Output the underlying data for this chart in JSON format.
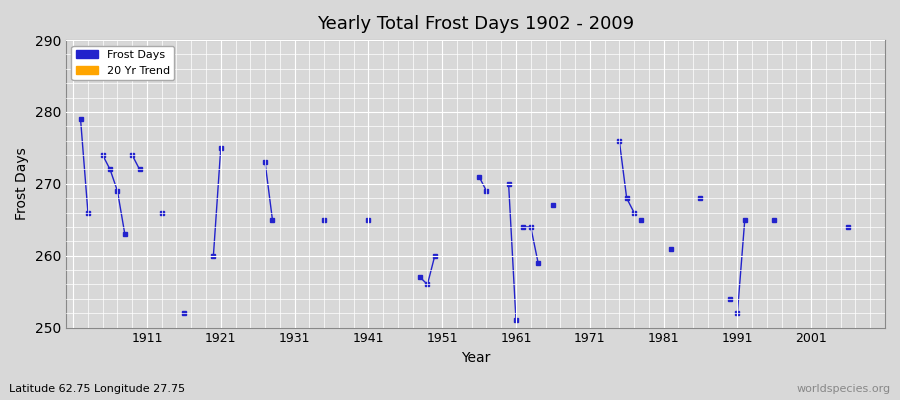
{
  "title": "Yearly Total Frost Days 1902 - 2009",
  "xlabel": "Year",
  "ylabel": "Frost Days",
  "xlim": [
    1900,
    2011
  ],
  "ylim": [
    250,
    290
  ],
  "yticks": [
    250,
    260,
    270,
    280,
    290
  ],
  "xticks": [
    1901,
    1911,
    1921,
    1931,
    1941,
    1951,
    1961,
    1971,
    1981,
    1991,
    2001
  ],
  "xticklabels": [
    "",
    "1911",
    "1921",
    "1931",
    "1941",
    "1951",
    "1961",
    "1971",
    "1981",
    "1991",
    "2001"
  ],
  "bg_color": "#d8d8d8",
  "plot_bg_color": "#d8d8d8",
  "line_color": "#2222cc",
  "trend_color": "#ffa500",
  "grid_color": "#ffffff",
  "subtitle": "Latitude 62.75 Longitude 27.75",
  "watermark": "worldspecies.org",
  "frost_data": [
    [
      1902,
      279
    ],
    [
      1903,
      266
    ],
    [
      null,
      null
    ],
    [
      1905,
      274
    ],
    [
      1906,
      272
    ],
    [
      1907,
      269
    ],
    [
      1908,
      263
    ],
    [
      null,
      null
    ],
    [
      1909,
      274
    ],
    [
      1910,
      272
    ],
    [
      null,
      null
    ],
    [
      1913,
      266
    ],
    [
      null,
      null
    ],
    [
      1916,
      252
    ],
    [
      null,
      null
    ],
    [
      1920,
      260
    ],
    [
      1921,
      275
    ],
    [
      null,
      null
    ],
    [
      1927,
      273
    ],
    [
      1928,
      265
    ],
    [
      null,
      null
    ],
    [
      1935,
      265
    ],
    [
      null,
      null
    ],
    [
      1941,
      265
    ],
    [
      null,
      null
    ],
    [
      1948,
      257
    ],
    [
      1949,
      256
    ],
    [
      1950,
      260
    ],
    [
      null,
      null
    ],
    [
      1956,
      271
    ],
    [
      1957,
      269
    ],
    [
      null,
      null
    ],
    [
      1960,
      270
    ],
    [
      1961,
      251
    ],
    [
      null,
      null
    ],
    [
      1962,
      264
    ],
    [
      1963,
      264
    ],
    [
      1964,
      259
    ],
    [
      null,
      null
    ],
    [
      1966,
      267
    ],
    [
      null,
      null
    ],
    [
      1975,
      276
    ],
    [
      1976,
      268
    ],
    [
      1977,
      266
    ],
    [
      null,
      null
    ],
    [
      1978,
      265
    ],
    [
      null,
      null
    ],
    [
      1982,
      261
    ],
    [
      null,
      null
    ],
    [
      1986,
      268
    ],
    [
      null,
      null
    ],
    [
      1990,
      254
    ],
    [
      null,
      null
    ],
    [
      1991,
      252
    ],
    [
      1992,
      265
    ],
    [
      null,
      null
    ],
    [
      1996,
      265
    ],
    [
      null,
      null
    ],
    [
      2006,
      264
    ]
  ]
}
